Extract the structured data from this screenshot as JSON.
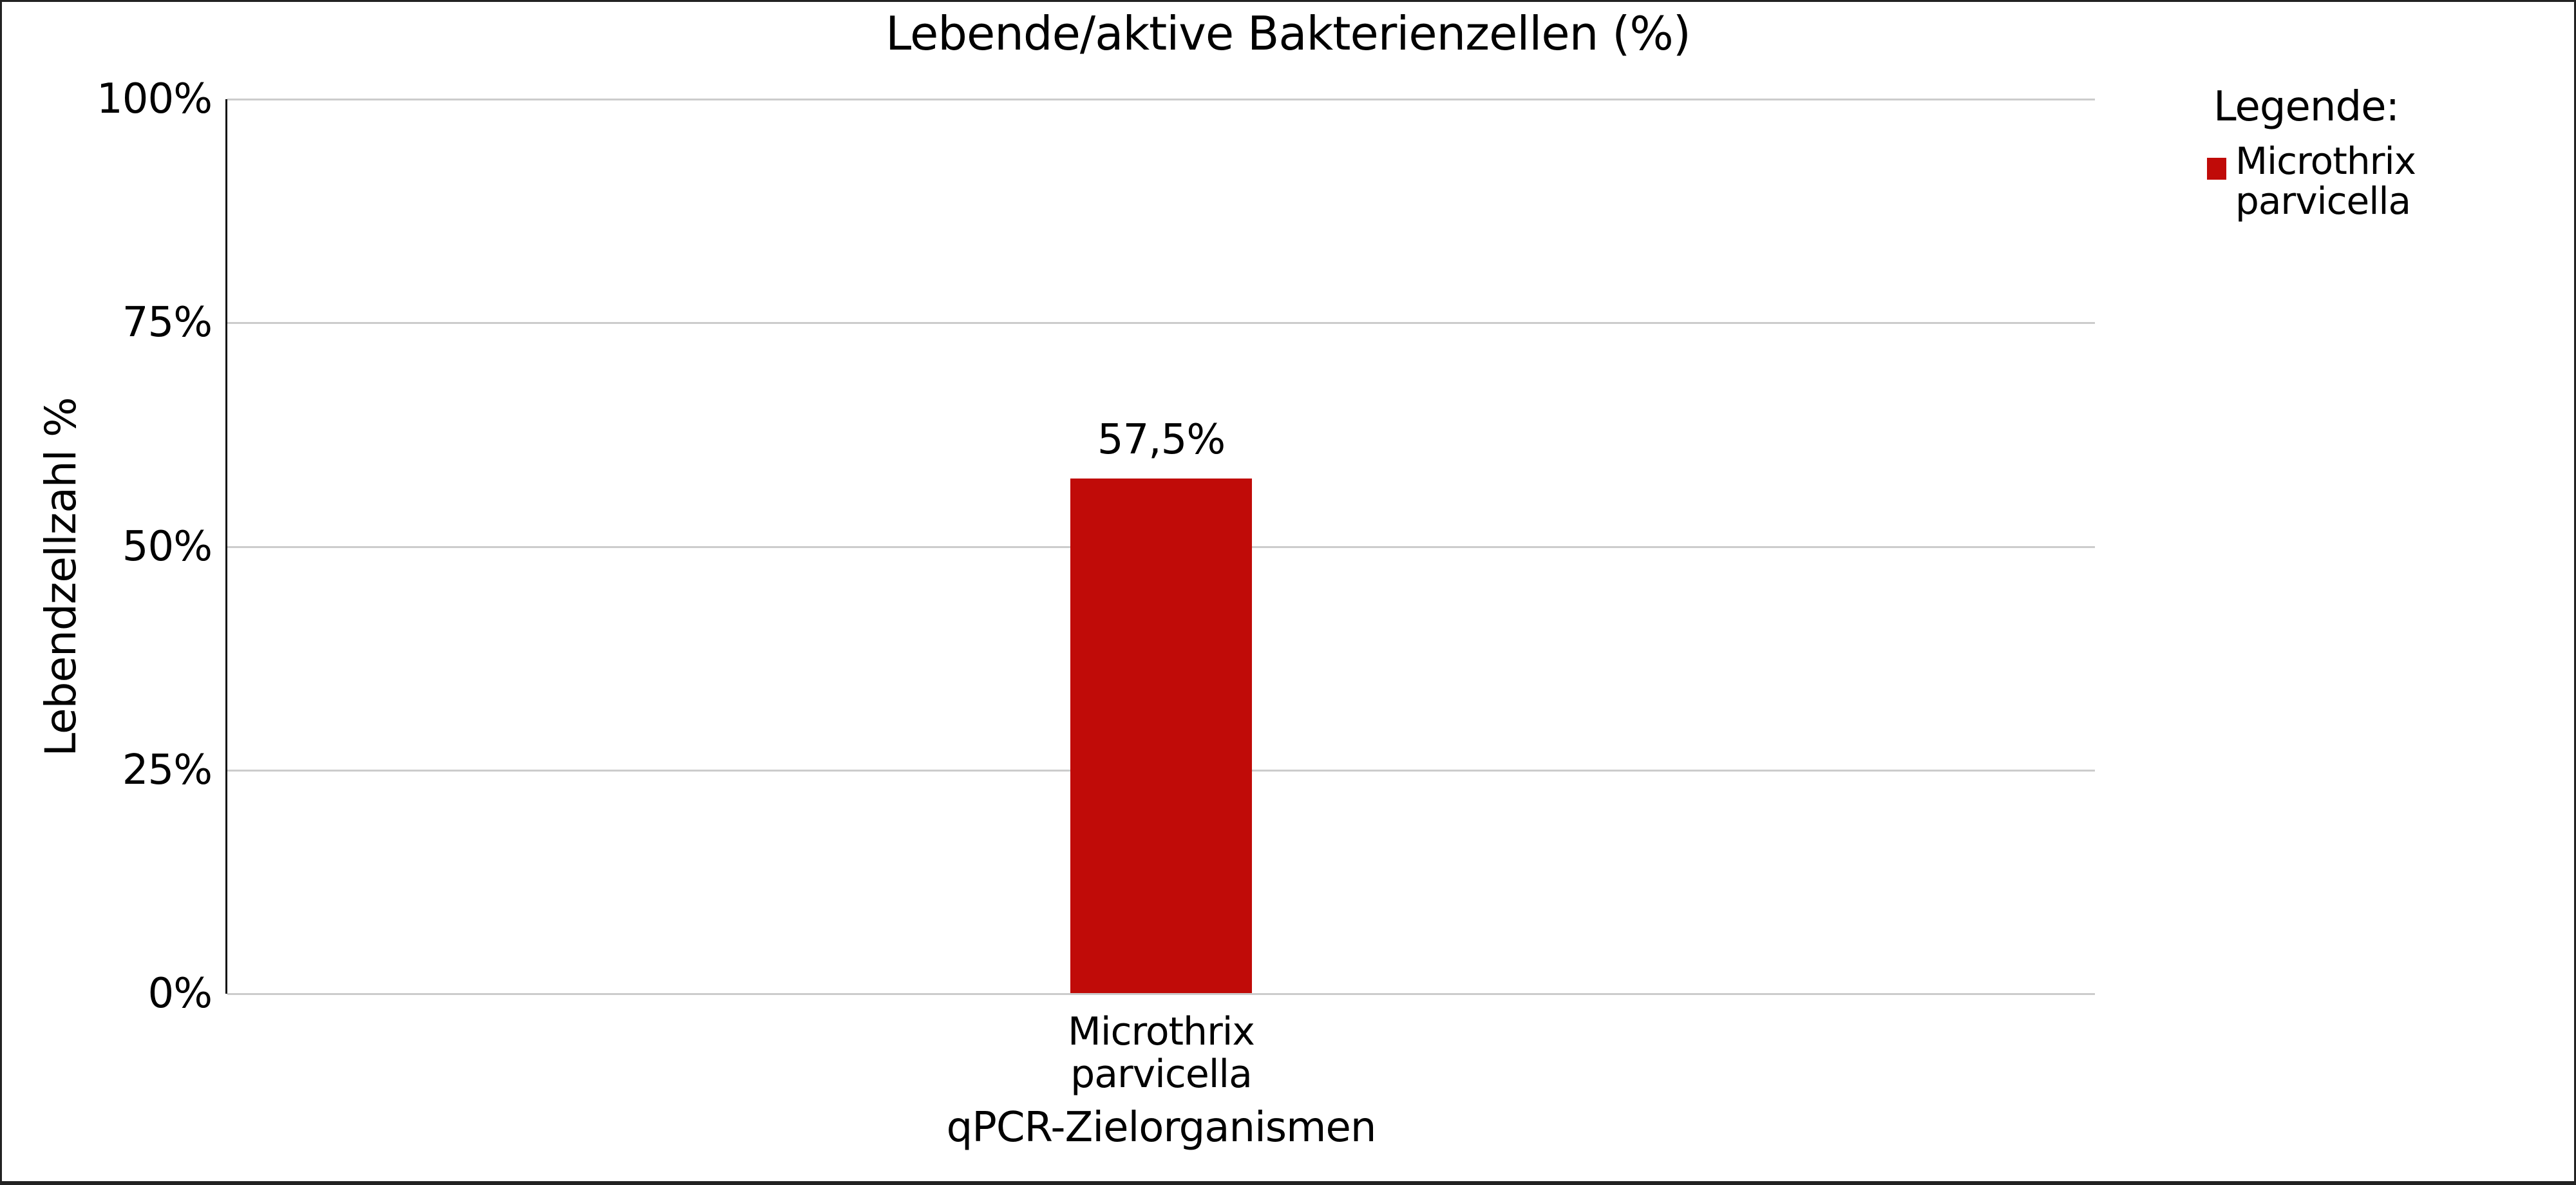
{
  "chart_data": {
    "type": "bar",
    "title": "Lebende/aktive Bakterienzellen (%)",
    "xlabel": "qPCR-Zielorganismen",
    "ylabel": "Lebendzellzahl %",
    "categories": [
      "Microthrix parvicella"
    ],
    "values": [
      57.5
    ],
    "bar_labels": [
      "57,5%"
    ],
    "bar_color": "#c00b08",
    "ylim": [
      0,
      100
    ],
    "yticks": [
      {
        "label": "0%",
        "value": 0
      },
      {
        "label": "25%",
        "value": 25
      },
      {
        "label": "50%",
        "value": 50
      },
      {
        "label": "75%",
        "value": 75
      },
      {
        "label": "100%",
        "value": 100
      }
    ],
    "grid": true,
    "axis_color": "#111111",
    "gridline_color": "#cccccc",
    "legend_position": "right",
    "legend": {
      "title": "Legende:",
      "entries": [
        {
          "label": "Microthrix parvicella",
          "color": "#c00b08"
        }
      ]
    }
  }
}
